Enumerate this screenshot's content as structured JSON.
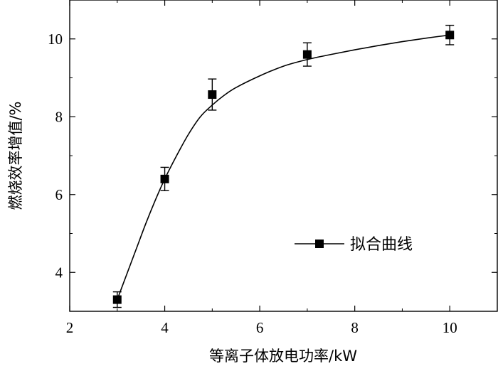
{
  "chart_data": {
    "type": "scatter",
    "xlabel": "等离子体放电功率/kW",
    "ylabel": "燃烧效率增值/%",
    "xlim": [
      2,
      11
    ],
    "ylim": [
      3,
      11
    ],
    "xticks": [
      2,
      4,
      6,
      8,
      10
    ],
    "yticks": [
      4,
      6,
      8,
      10
    ],
    "legend": {
      "label": "拟合曲线",
      "placement": "center-right"
    },
    "grid": false,
    "series": [
      {
        "name": "拟合曲线",
        "marker": "square",
        "color": "#000000",
        "points": [
          {
            "x": 3,
            "y": 3.3,
            "err": 0.2
          },
          {
            "x": 4,
            "y": 6.4,
            "err": 0.3
          },
          {
            "x": 5,
            "y": 8.57,
            "err": 0.4
          },
          {
            "x": 7,
            "y": 9.6,
            "err": 0.3
          },
          {
            "x": 10,
            "y": 10.1,
            "err": 0.25
          }
        ],
        "fit_curve": [
          [
            3,
            3.3
          ],
          [
            3.2,
            3.95
          ],
          [
            3.4,
            4.6
          ],
          [
            3.6,
            5.25
          ],
          [
            3.8,
            5.85
          ],
          [
            4.0,
            6.4
          ],
          [
            4.25,
            7.0
          ],
          [
            4.5,
            7.55
          ],
          [
            4.75,
            8.0
          ],
          [
            5.0,
            8.3
          ],
          [
            5.25,
            8.55
          ],
          [
            5.5,
            8.75
          ],
          [
            6.0,
            9.05
          ],
          [
            6.5,
            9.3
          ],
          [
            7.0,
            9.47
          ],
          [
            7.5,
            9.6
          ],
          [
            8.0,
            9.72
          ],
          [
            8.5,
            9.83
          ],
          [
            9.0,
            9.93
          ],
          [
            9.5,
            10.02
          ],
          [
            10.0,
            10.1
          ]
        ]
      }
    ]
  }
}
